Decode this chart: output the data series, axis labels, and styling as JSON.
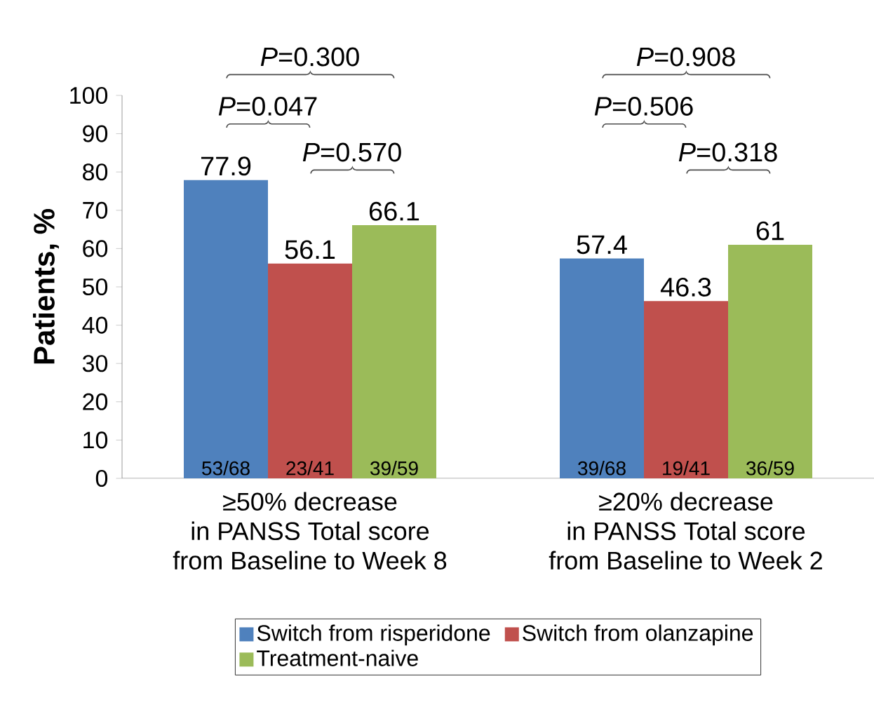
{
  "chart_data": {
    "type": "bar",
    "ylabel": "Patients, %",
    "categories": [
      "≥50% decrease in PANSS Total score from Baseline to Week 8",
      "≥20% decrease in PANSS Total score from Baseline to Week 2"
    ],
    "series": [
      {
        "name": "Switch from risperidone",
        "color": "#4f81bd",
        "values": [
          77.9,
          57.4
        ]
      },
      {
        "name": "Switch from olanzapine",
        "color": "#c0504d",
        "values": [
          56.1,
          46.3
        ]
      },
      {
        "name": "Treatment-naive",
        "color": "#9bbb59",
        "values": [
          66.1,
          61
        ]
      }
    ],
    "ylim": [
      0,
      100
    ],
    "yticks": [
      0,
      10,
      20,
      30,
      40,
      50,
      60,
      70,
      80,
      90,
      100
    ],
    "data_labels": true,
    "legend": "bottom",
    "grid": false,
    "annotations": [
      "53/68",
      "23/41",
      "39/59",
      "39/68",
      "19/41",
      "36/59",
      "*P*=0.300",
      "*P*=0.047",
      "*P*=0.570",
      "*P*=0.908",
      "*P*=0.506",
      "*P*=0.318"
    ]
  }
}
